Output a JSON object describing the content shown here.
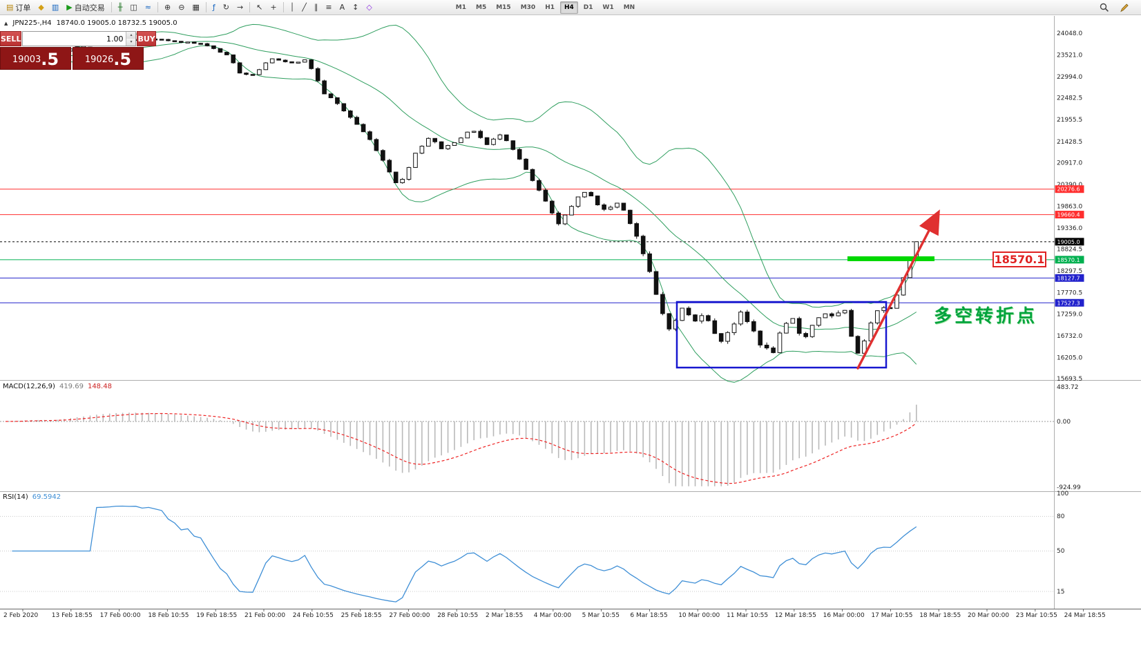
{
  "toolbar": {
    "buttons": [
      {
        "name": "new-order",
        "label": "订单"
      },
      {
        "name": "sound-alert",
        "label": ""
      },
      {
        "name": "charts-window",
        "label": ""
      },
      {
        "name": "autotrading",
        "label": "自动交易"
      },
      {
        "sep": true
      },
      {
        "name": "bar-chart",
        "label": ""
      },
      {
        "name": "candlestick-chart",
        "label": ""
      },
      {
        "name": "line-chart",
        "label": ""
      },
      {
        "sep": true
      },
      {
        "name": "zoom-in",
        "label": ""
      },
      {
        "name": "zoom-out",
        "label": ""
      },
      {
        "name": "tile-windows",
        "label": ""
      },
      {
        "sep": true
      },
      {
        "name": "indicators-list",
        "label": ""
      },
      {
        "name": "auto-scroll",
        "label": ""
      },
      {
        "name": "chart-shift",
        "label": ""
      },
      {
        "sep": true
      },
      {
        "name": "cursor",
        "label": ""
      },
      {
        "name": "crosshair",
        "label": ""
      },
      {
        "sep": true
      },
      {
        "name": "vertical-line-tool",
        "label": ""
      },
      {
        "name": "trendline-tool",
        "label": ""
      },
      {
        "name": "channel-tool",
        "label": ""
      },
      {
        "name": "fibonacci-tool",
        "label": ""
      },
      {
        "name": "text-tool",
        "label": ""
      },
      {
        "name": "arrows-tool",
        "label": ""
      },
      {
        "name": "shapes-tool",
        "label": ""
      }
    ],
    "timeframes": [
      "M1",
      "M5",
      "M15",
      "M30",
      "H1",
      "H4",
      "D1",
      "W1",
      "MN"
    ],
    "active_timeframe": "H4"
  },
  "symbol_header": {
    "symbol": "JPN225-,H4",
    "ohlc_text": "18740.0 19005.0 18732.5 19005.0"
  },
  "trade_panel": {
    "sell_label": "SELL",
    "buy_label": "BUY",
    "volume": "1.00",
    "sell_price_main": "19003",
    "sell_price_frac": ".5",
    "buy_price_main": "19026",
    "buy_price_frac": ".5"
  },
  "price_scale": [
    "24048.0",
    "23521.0",
    "22994.0",
    "22482.5",
    "21955.5",
    "21428.5",
    "20917.0",
    "20390.0",
    "19863.0",
    "19336.0",
    "18824.5",
    "18297.5",
    "17770.5",
    "17259.0",
    "16732.0",
    "16205.0",
    "15693.5"
  ],
  "hlines": [
    {
      "price": 20276.6,
      "label": "20276.6",
      "color": "#ff2e2e"
    },
    {
      "price": 19660.4,
      "label": "19660.4",
      "color": "#ff2e2e"
    },
    {
      "price": 19005.0,
      "label": "19005.0",
      "color": "#000000",
      "dash": "3,3"
    },
    {
      "price": 18570.1,
      "label": "18570.1",
      "color": "#00b050"
    },
    {
      "price": 18127.7,
      "label": "18127.7",
      "color": "#2222cc"
    },
    {
      "price": 17527.3,
      "label": "17527.3",
      "color": "#2222cc"
    }
  ],
  "annotations": {
    "price_callout": "18570.1",
    "turning_point_text": "多空转折点",
    "turning_point_color": "#00a33c",
    "callout_color": "#e02222",
    "highlight_color": "#00d800",
    "arrow_color": "#e03030",
    "box_color": "#1717cf"
  },
  "macd": {
    "label": "MACD(12,26,9)",
    "value_main": "419.69",
    "value_signal": "148.48",
    "scale": [
      "483.72",
      "0.00",
      "-924.99"
    ]
  },
  "rsi": {
    "label": "RSI(14)",
    "value": "69.5942",
    "scale": [
      "100",
      "80",
      "50",
      "15"
    ]
  },
  "date_axis": [
    "2 Feb 2020",
    "13 Feb 18:55",
    "17 Feb 00:00",
    "18 Feb 10:55",
    "19 Feb 18:55",
    "21 Feb 00:00",
    "24 Feb 10:55",
    "25 Feb 18:55",
    "27 Feb 00:00",
    "28 Feb 10:55",
    "2 Mar 18:55",
    "4 Mar 00:00",
    "5 Mar 10:55",
    "6 Mar 18:55",
    "10 Mar 00:00",
    "11 Mar 10:55",
    "12 Mar 18:55",
    "16 Mar 00:00",
    "17 Mar 10:55",
    "18 Mar 18:55",
    "20 Mar 00:00",
    "23 Mar 10:55",
    "24 Mar 18:55"
  ],
  "chart_data": {
    "type": "candlestick",
    "symbol": "JPN225-",
    "timeframe": "H4",
    "current_ohlc": {
      "open": 18740.0,
      "high": 19005.0,
      "low": 18732.5,
      "close": 19005.0
    },
    "bid": 19003.5,
    "ask": 19026.5,
    "y_range": [
      15693.5,
      24048.0
    ],
    "horizontal_levels": [
      20276.6,
      19660.4,
      19005.0,
      18570.1,
      18127.7,
      17527.3
    ],
    "close_path_anchors": [
      [
        8,
        23400
      ],
      [
        40,
        23500
      ],
      [
        70,
        23450
      ],
      [
        100,
        23650
      ],
      [
        135,
        23820
      ],
      [
        170,
        23880
      ],
      [
        212,
        23900
      ],
      [
        255,
        23860
      ],
      [
        300,
        23760
      ],
      [
        332,
        23480
      ],
      [
        350,
        23020
      ],
      [
        368,
        23060
      ],
      [
        392,
        23420
      ],
      [
        418,
        23330
      ],
      [
        445,
        23400
      ],
      [
        468,
        22620
      ],
      [
        492,
        22280
      ],
      [
        515,
        21880
      ],
      [
        540,
        21380
      ],
      [
        565,
        20680
      ],
      [
        578,
        20330
      ],
      [
        600,
        21120
      ],
      [
        620,
        21520
      ],
      [
        642,
        21240
      ],
      [
        665,
        21520
      ],
      [
        686,
        21700
      ],
      [
        706,
        21330
      ],
      [
        726,
        21650
      ],
      [
        746,
        21180
      ],
      [
        763,
        20680
      ],
      [
        788,
        20030
      ],
      [
        808,
        19380
      ],
      [
        830,
        19960
      ],
      [
        852,
        20240
      ],
      [
        872,
        19740
      ],
      [
        896,
        19960
      ],
      [
        918,
        19340
      ],
      [
        938,
        18380
      ],
      [
        955,
        17420
      ],
      [
        972,
        16840
      ],
      [
        988,
        17420
      ],
      [
        1005,
        17040
      ],
      [
        1020,
        17360
      ],
      [
        1040,
        16540
      ],
      [
        1057,
        16900
      ],
      [
        1072,
        17260
      ],
      [
        1088,
        16940
      ],
      [
        1103,
        16480
      ],
      [
        1118,
        16300
      ],
      [
        1133,
        16900
      ],
      [
        1148,
        17120
      ],
      [
        1162,
        16640
      ],
      [
        1177,
        17000
      ],
      [
        1192,
        17320
      ],
      [
        1207,
        17140
      ],
      [
        1222,
        17360
      ],
      [
        1237,
        16480
      ],
      [
        1247,
        16230
      ],
      [
        1257,
        16960
      ],
      [
        1267,
        17300
      ],
      [
        1277,
        17520
      ],
      [
        1287,
        17300
      ],
      [
        1297,
        17660
      ],
      [
        1307,
        18120
      ],
      [
        1317,
        18560
      ],
      [
        1327,
        19005
      ]
    ],
    "indicators": {
      "bollinger": {
        "period": 20,
        "deviation": 2
      },
      "macd": {
        "fast": 12,
        "slow": 26,
        "signal": 9,
        "value_main": 419.69,
        "value_signal": 148.48,
        "scale_max": 483.72,
        "scale_min": -924.99
      },
      "rsi": {
        "period": 14,
        "value": 69.5942
      }
    }
  }
}
